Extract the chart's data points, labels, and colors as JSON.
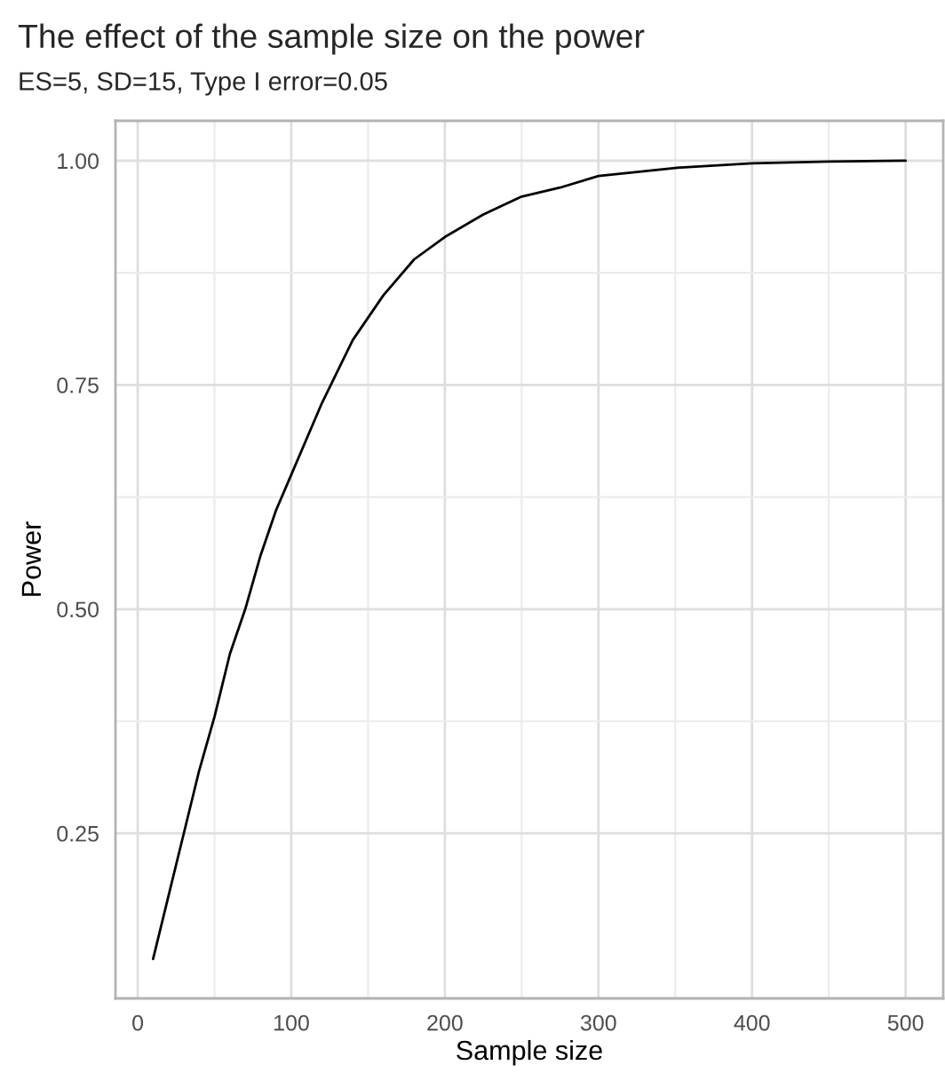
{
  "chart_data": {
    "type": "line",
    "title": "The effect of the sample size on the power",
    "subtitle": "ES=5, SD=15, Type I error=0.05",
    "xlabel": "Sample size",
    "ylabel": "Power",
    "x": [
      10,
      20,
      30,
      40,
      50,
      60,
      70,
      80,
      90,
      100,
      120,
      140,
      160,
      180,
      200,
      225,
      250,
      275,
      300,
      350,
      400,
      450,
      500
    ],
    "series": [
      {
        "color": "#000000",
        "values": [
          0.11,
          0.18,
          0.25,
          0.32,
          0.38,
          0.45,
          0.5,
          0.56,
          0.61,
          0.65,
          0.73,
          0.8,
          0.85,
          0.89,
          0.915,
          0.94,
          0.96,
          0.97,
          0.983,
          0.992,
          0.997,
          0.999,
          1.0
        ]
      }
    ],
    "xlim": [
      -14.5,
      524.5
    ],
    "ylim": [
      0.066,
      1.0445
    ],
    "xticks": [
      0,
      100,
      200,
      300,
      400,
      500
    ],
    "yticks": [
      {
        "value": 0.25,
        "label": "0.25"
      },
      {
        "value": 0.5,
        "label": "0.50"
      },
      {
        "value": 0.75,
        "label": "0.75"
      },
      {
        "value": 1.0,
        "label": "1.00"
      }
    ],
    "grid": true,
    "legend": false,
    "line_style": "solid",
    "marker": "none"
  }
}
